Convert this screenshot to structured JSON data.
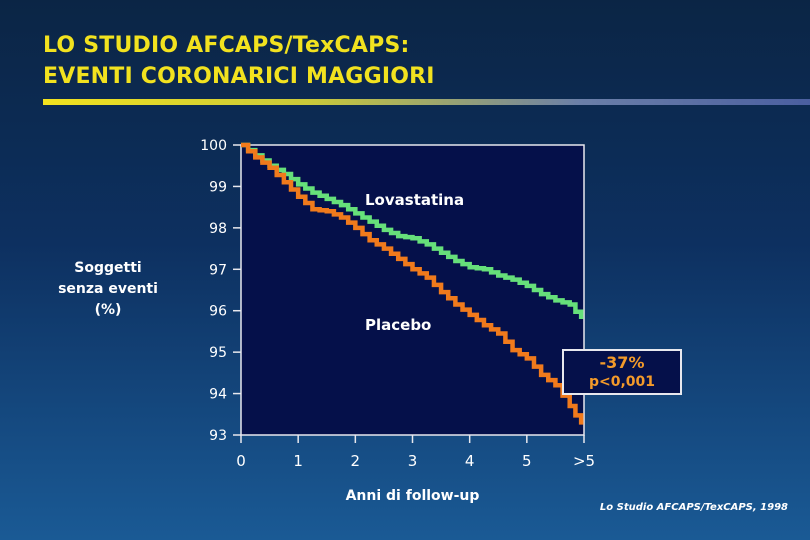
{
  "title": {
    "line1": "LO STUDIO AFCAPS/TexCAPS:",
    "line2": "EVENTI CORONARICI MAGGIORI"
  },
  "source": "Lo Studio AFCAPS/TexCAPS, 1998",
  "result_box": {
    "reduction": "-37%",
    "p_value": "p<0,001"
  },
  "chart_data": {
    "type": "line",
    "xlabel": "Anni di follow-up",
    "ylabel_lines": [
      "Soggetti",
      "senza eventi",
      "(%)"
    ],
    "xlim": [
      0,
      6
    ],
    "ylim": [
      93,
      100
    ],
    "x_ticks": [
      0,
      1,
      2,
      3,
      4,
      5,
      6
    ],
    "x_tick_labels": [
      "0",
      "1",
      "2",
      "3",
      "4",
      "5",
      ">5"
    ],
    "y_ticks": [
      93,
      94,
      95,
      96,
      97,
      98,
      99,
      100
    ],
    "y_tick_labels": [
      "93",
      "94",
      "95",
      "96",
      "97",
      "98",
      "99",
      "100"
    ],
    "series": [
      {
        "name": "Lovastatina",
        "color": "#66e07a",
        "x": [
          0,
          0.25,
          0.5,
          0.75,
          1.0,
          1.25,
          1.5,
          1.75,
          2.0,
          2.25,
          2.5,
          2.75,
          3.0,
          3.25,
          3.5,
          3.75,
          4.0,
          4.25,
          4.5,
          4.75,
          5.0,
          5.25,
          5.5,
          5.75,
          5.95
        ],
        "values": [
          100,
          99.75,
          99.5,
          99.3,
          99.05,
          98.85,
          98.7,
          98.55,
          98.35,
          98.15,
          97.95,
          97.8,
          97.75,
          97.6,
          97.4,
          97.2,
          97.05,
          97.0,
          96.85,
          96.75,
          96.6,
          96.4,
          96.25,
          96.15,
          95.8
        ]
      },
      {
        "name": "Placebo",
        "color": "#f07a1c",
        "x": [
          0,
          0.25,
          0.5,
          0.75,
          1.0,
          1.25,
          1.5,
          1.75,
          2.0,
          2.25,
          2.5,
          2.75,
          3.0,
          3.25,
          3.5,
          3.75,
          4.0,
          4.25,
          4.5,
          4.75,
          5.0,
          5.25,
          5.5,
          5.75,
          5.95
        ],
        "values": [
          100,
          99.7,
          99.45,
          99.1,
          98.75,
          98.45,
          98.4,
          98.25,
          98.0,
          97.7,
          97.5,
          97.25,
          97.0,
          96.8,
          96.45,
          96.15,
          95.9,
          95.65,
          95.45,
          95.05,
          94.85,
          94.45,
          94.2,
          93.7,
          93.25
        ]
      }
    ],
    "annotations": [
      {
        "text": "Lovastatina",
        "near_series": "Lovastatina"
      },
      {
        "text": "Placebo",
        "near_series": "Placebo"
      }
    ]
  }
}
